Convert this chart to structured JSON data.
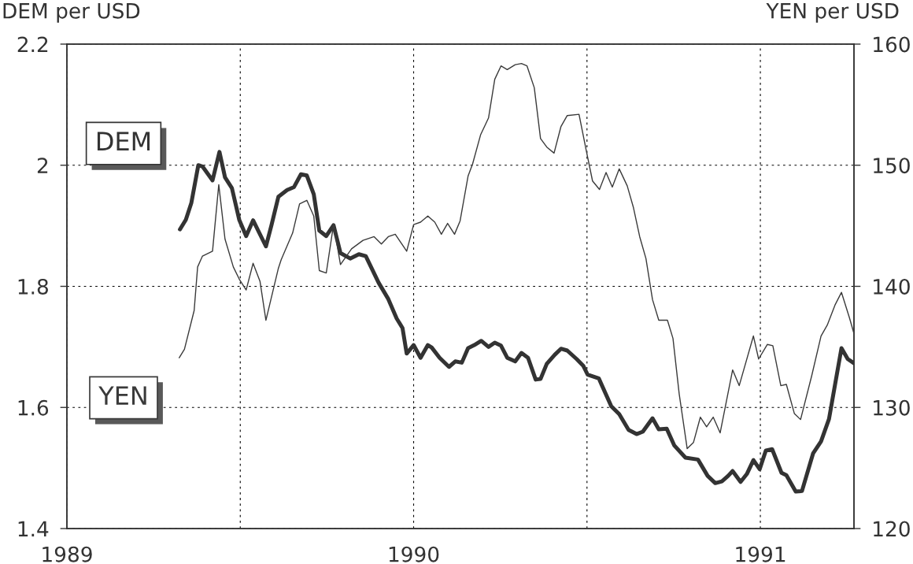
{
  "chart_data": {
    "type": "line",
    "ylabel": "DEM per USD",
    "y2label": "YEN per USD",
    "xlim": [
      1989,
      1991.27
    ],
    "xticks": [
      1989,
      {
        "value": 1989.5,
        "label": null
      },
      1990,
      {
        "value": 1990.5,
        "label": null
      },
      1991
    ],
    "ylim": [
      1.4,
      2.2
    ],
    "yticks": [
      1.4,
      1.6,
      1.8,
      2,
      2.2
    ],
    "y2lim": [
      120,
      160
    ],
    "y2ticks": [
      120,
      130,
      140,
      150,
      160
    ],
    "grid": true,
    "legend": "left",
    "series": [
      {
        "name": "DEM",
        "color": "#333333",
        "x": [
          1989.326,
          1989.343,
          1989.359,
          1989.379,
          1989.391,
          1989.42,
          1989.44,
          1989.456,
          1989.476,
          1989.497,
          1989.517,
          1989.537,
          1989.574,
          1989.59,
          1989.61,
          1989.635,
          1989.655,
          1989.675,
          1989.692,
          1989.712,
          1989.728,
          1989.748,
          1989.769,
          1989.789,
          1989.817,
          1989.842,
          1989.862,
          1989.899,
          1989.927,
          1989.951,
          1989.968,
          1989.98,
          1990.0,
          1990.02,
          1990.041,
          1990.052,
          1990.075,
          1990.102,
          1990.12,
          1990.139,
          1990.157,
          1990.175,
          1990.195,
          1990.216,
          1990.234,
          1990.252,
          1990.27,
          1990.293,
          1990.311,
          1990.33,
          1990.352,
          1990.366,
          1990.384,
          1990.407,
          1990.425,
          1990.443,
          1990.47,
          1990.489,
          1990.502,
          1990.534,
          1990.57,
          1990.593,
          1990.62,
          1990.643,
          1990.661,
          1990.689,
          1990.707,
          1990.73,
          1990.752,
          1990.784,
          1990.82,
          1990.848,
          1990.87,
          1990.889,
          1990.907,
          1990.92,
          1990.943,
          1990.961,
          1990.98,
          1990.998,
          1991.016,
          1991.034,
          1991.061,
          1991.075,
          1991.102,
          1991.12,
          1991.152,
          1991.175,
          1991.198,
          1991.234,
          1991.252,
          1991.27
        ],
        "values": [
          1.894,
          1.91,
          1.938,
          2.0,
          1.998,
          1.975,
          2.022,
          1.98,
          1.962,
          1.91,
          1.883,
          1.909,
          1.866,
          1.901,
          1.948,
          1.959,
          1.964,
          1.985,
          1.983,
          1.952,
          1.892,
          1.883,
          1.901,
          1.855,
          1.846,
          1.853,
          1.85,
          1.806,
          1.779,
          1.747,
          1.731,
          1.689,
          1.703,
          1.682,
          1.703,
          1.699,
          1.682,
          1.667,
          1.676,
          1.674,
          1.698,
          1.703,
          1.71,
          1.7,
          1.707,
          1.702,
          1.682,
          1.676,
          1.69,
          1.682,
          1.646,
          1.647,
          1.672,
          1.687,
          1.697,
          1.694,
          1.68,
          1.669,
          1.654,
          1.648,
          1.602,
          1.589,
          1.563,
          1.556,
          1.56,
          1.582,
          1.564,
          1.565,
          1.537,
          1.517,
          1.514,
          1.487,
          1.475,
          1.478,
          1.487,
          1.495,
          1.477,
          1.49,
          1.513,
          1.498,
          1.529,
          1.531,
          1.492,
          1.488,
          1.461,
          1.462,
          1.524,
          1.544,
          1.581,
          1.698,
          1.68,
          1.673
        ]
      },
      {
        "name": "YEN",
        "color": "#3a3a3a",
        "axis": "y2",
        "x": [
          1989.324,
          1989.339,
          1989.367,
          1989.377,
          1989.391,
          1989.42,
          1989.438,
          1989.456,
          1989.48,
          1989.497,
          1989.517,
          1989.537,
          1989.557,
          1989.574,
          1989.61,
          1989.618,
          1989.651,
          1989.671,
          1989.692,
          1989.712,
          1989.728,
          1989.748,
          1989.769,
          1989.789,
          1989.821,
          1989.854,
          1989.886,
          1989.907,
          1989.927,
          1989.947,
          1989.98,
          1990.0,
          1990.02,
          1990.041,
          1990.061,
          1990.08,
          1990.098,
          1990.118,
          1990.134,
          1990.157,
          1990.17,
          1990.193,
          1990.216,
          1990.234,
          1990.252,
          1990.27,
          1990.293,
          1990.311,
          1990.327,
          1990.348,
          1990.366,
          1990.384,
          1990.405,
          1990.425,
          1990.443,
          1990.477,
          1990.498,
          1990.516,
          1990.536,
          1990.555,
          1990.573,
          1990.593,
          1990.616,
          1990.634,
          1990.652,
          1990.67,
          1990.689,
          1990.707,
          1990.732,
          1990.748,
          1990.766,
          1990.789,
          1990.807,
          1990.827,
          1990.845,
          1990.864,
          1990.884,
          1990.92,
          1990.939,
          1990.98,
          1990.995,
          1991.02,
          1991.036,
          1991.059,
          1991.075,
          1991.098,
          1991.116,
          1991.148,
          1991.175,
          1991.193,
          1991.216,
          1991.234,
          1991.257,
          1991.27
        ],
        "values": [
          134.1,
          134.8,
          138.0,
          141.6,
          142.5,
          142.9,
          148.4,
          143.9,
          141.6,
          140.6,
          139.7,
          141.9,
          140.4,
          137.2,
          141.5,
          142.2,
          144.4,
          146.8,
          147.1,
          145.8,
          141.3,
          141.1,
          145.1,
          141.8,
          143.1,
          143.8,
          144.1,
          143.5,
          144.1,
          144.3,
          142.9,
          145.1,
          145.3,
          145.8,
          145.3,
          144.3,
          145.2,
          144.3,
          145.4,
          149.1,
          150.1,
          152.5,
          153.9,
          157.1,
          158.2,
          157.9,
          158.3,
          158.4,
          158.2,
          156.4,
          152.2,
          151.5,
          151.0,
          153.2,
          154.1,
          154.2,
          151.2,
          148.7,
          148.0,
          149.4,
          148.2,
          149.7,
          148.3,
          146.5,
          144.1,
          142.3,
          138.9,
          137.2,
          137.2,
          135.7,
          131.1,
          126.6,
          127.1,
          129.2,
          128.4,
          129.2,
          127.9,
          133.1,
          131.8,
          135.9,
          134.0,
          135.2,
          135.1,
          131.8,
          131.9,
          129.5,
          129.0,
          132.6,
          135.9,
          136.8,
          138.5,
          139.5,
          137.4,
          136.1
        ]
      }
    ]
  }
}
